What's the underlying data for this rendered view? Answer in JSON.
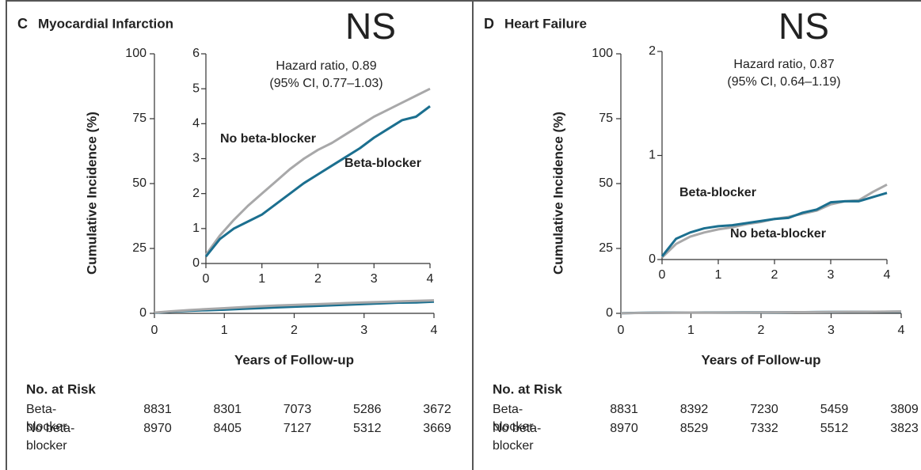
{
  "chart_data": [
    {
      "type": "line",
      "panel": "C",
      "title": "Myocardial Infarction",
      "annotation": "NS",
      "ylabel": "Cumulative Incidence (%)",
      "xlabel": "Years of Follow-up",
      "x": [
        0,
        0.25,
        0.5,
        0.75,
        1,
        1.25,
        1.5,
        1.75,
        2,
        2.25,
        2.5,
        2.75,
        3,
        3.25,
        3.5,
        3.75,
        4
      ],
      "series": [
        {
          "name": "Beta-blocker",
          "color": "#1b6f8f",
          "values": [
            0.2,
            0.7,
            1.0,
            1.2,
            1.4,
            1.7,
            2.0,
            2.3,
            2.55,
            2.8,
            3.05,
            3.3,
            3.6,
            3.85,
            4.1,
            4.2,
            4.5
          ]
        },
        {
          "name": "No beta-blocker",
          "color": "#a8a8a9",
          "values": [
            0.25,
            0.8,
            1.25,
            1.65,
            2.0,
            2.35,
            2.7,
            3.0,
            3.25,
            3.45,
            3.7,
            3.95,
            4.2,
            4.4,
            4.6,
            4.8,
            5.0
          ]
        }
      ],
      "xlim": [
        0,
        4
      ],
      "xticks": [
        0,
        1,
        2,
        3,
        4
      ],
      "ylim": [
        0,
        100
      ],
      "yticks": [
        0,
        25,
        50,
        75,
        100
      ],
      "inset": {
        "xlim": [
          0,
          4
        ],
        "xticks": [
          0,
          1,
          2,
          3,
          4
        ],
        "ylim": [
          0,
          6
        ],
        "yticks": [
          0,
          1,
          2,
          3,
          4,
          5,
          6
        ],
        "annotation": [
          "Hazard ratio, 0.89",
          "(95% CI, 0.77–1.03)"
        ]
      },
      "risk_table": {
        "title": "No. at Risk",
        "rows": [
          {
            "label": "Beta-blocker",
            "values": [
              8831,
              8301,
              7073,
              5286,
              3672
            ]
          },
          {
            "label": "No beta-blocker",
            "values": [
              8970,
              8405,
              7127,
              5312,
              3669
            ]
          }
        ]
      }
    },
    {
      "type": "line",
      "panel": "D",
      "title": "Heart Failure",
      "annotation": "NS",
      "ylabel": "Cumulative Incidence (%)",
      "xlabel": "Years of Follow-up",
      "x": [
        0,
        0.25,
        0.5,
        0.75,
        1,
        1.25,
        1.5,
        1.75,
        2,
        2.25,
        2.5,
        2.75,
        3,
        3.25,
        3.5,
        3.75,
        4
      ],
      "series": [
        {
          "name": "Beta-blocker",
          "color": "#1b6f8f",
          "values": [
            0.03,
            0.2,
            0.26,
            0.3,
            0.32,
            0.33,
            0.35,
            0.37,
            0.39,
            0.4,
            0.45,
            0.48,
            0.55,
            0.56,
            0.56,
            0.6,
            0.64
          ]
        },
        {
          "name": "No beta-blocker",
          "color": "#a8a8a9",
          "values": [
            0.02,
            0.15,
            0.22,
            0.26,
            0.29,
            0.31,
            0.34,
            0.36,
            0.39,
            0.41,
            0.44,
            0.47,
            0.53,
            0.56,
            0.57,
            0.65,
            0.72
          ]
        }
      ],
      "xlim": [
        0,
        4
      ],
      "xticks": [
        0,
        1,
        2,
        3,
        4
      ],
      "ylim": [
        0,
        100
      ],
      "yticks": [
        0,
        25,
        50,
        75,
        100
      ],
      "inset": {
        "xlim": [
          0,
          4
        ],
        "xticks": [
          0,
          1,
          2,
          3,
          4
        ],
        "ylim": [
          0,
          2
        ],
        "yticks": [
          0,
          1,
          2
        ],
        "annotation": [
          "Hazard ratio, 0.87",
          "(95% CI, 0.64–1.19)"
        ]
      },
      "risk_table": {
        "title": "No. at Risk",
        "rows": [
          {
            "label": "Beta-blocker",
            "values": [
              8831,
              8392,
              7230,
              5459,
              3809
            ]
          },
          {
            "label": "No beta-blocker",
            "values": [
              8970,
              8529,
              7332,
              5512,
              3823
            ]
          }
        ]
      }
    }
  ]
}
